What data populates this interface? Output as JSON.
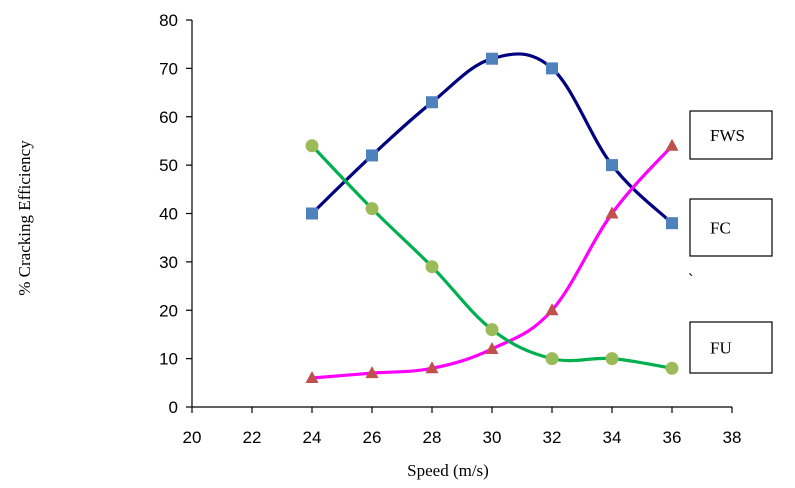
{
  "chart_data": {
    "type": "line",
    "xlabel": "Speed (m/s)",
    "ylabel": "% Cracking Efficiency",
    "xlim": [
      20,
      38
    ],
    "ylim": [
      0,
      80
    ],
    "xticks": [
      "20",
      "22",
      "24",
      "26",
      "28",
      "30",
      "32",
      "34",
      "36",
      "38"
    ],
    "yticks": [
      "0",
      "10",
      "20",
      "30",
      "40",
      "50",
      "60",
      "70",
      "80"
    ],
    "grid": false,
    "stray_mark": "`",
    "series": [
      {
        "name": "FWS",
        "color": "#000080",
        "marker": "square",
        "marker_color": "#4F81BD",
        "x": [
          24,
          26,
          28,
          30,
          32,
          34,
          36
        ],
        "y": [
          40,
          52,
          63,
          72,
          70,
          50,
          38
        ]
      },
      {
        "name": "FC",
        "color": "#FF00FF",
        "marker": "triangle",
        "marker_color": "#C0504D",
        "x": [
          24,
          26,
          28,
          30,
          32,
          34,
          36
        ],
        "y": [
          6,
          7,
          8,
          12,
          20,
          40,
          54
        ]
      },
      {
        "name": "FU",
        "color": "#00B050",
        "marker": "circle",
        "marker_color": "#9BBB59",
        "x": [
          24,
          26,
          28,
          30,
          32,
          34,
          36
        ],
        "y": [
          54,
          41,
          29,
          16,
          10,
          10,
          8
        ]
      }
    ],
    "legend": [
      "FWS",
      "FC",
      "FU"
    ]
  }
}
